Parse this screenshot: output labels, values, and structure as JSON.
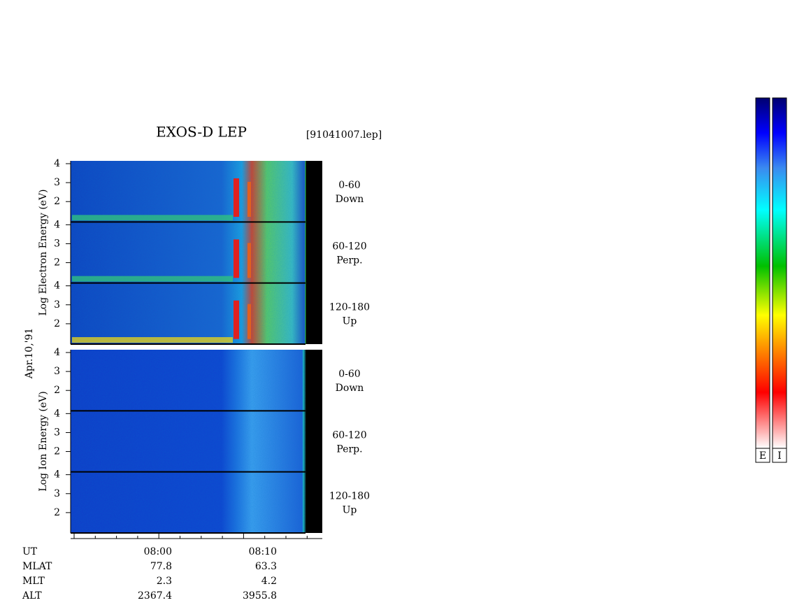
{
  "header": {
    "title": "EXOS-D LEP",
    "file": "[91041007.lep]"
  },
  "date": "Apr.10,'91",
  "electron": {
    "axis_label": "Log  Electron  Energy  (eV)",
    "panels": [
      {
        "angle": "0-60",
        "direction": "Down"
      },
      {
        "angle": "60-120",
        "direction": "Perp."
      },
      {
        "angle": "120-180",
        "direction": "Up"
      }
    ]
  },
  "ion": {
    "axis_label": "Log   Ion   Energy  (eV)",
    "panels": [
      {
        "angle": "0-60",
        "direction": "Down"
      },
      {
        "angle": "60-120",
        "direction": "Perp."
      },
      {
        "angle": "120-180",
        "direction": "Up"
      }
    ]
  },
  "y_ticks": [
    2,
    3,
    4
  ],
  "ephemeris": {
    "rows": [
      {
        "name": "UT",
        "values": [
          "08:00",
          "08:10"
        ]
      },
      {
        "name": "MLAT",
        "values": [
          "77.8",
          "63.3"
        ]
      },
      {
        "name": "MLT",
        "values": [
          "2.3",
          "4.2"
        ]
      },
      {
        "name": "ALT",
        "values": [
          "2367.4",
          "3955.8"
        ]
      }
    ]
  },
  "colorbars": [
    "E",
    "I"
  ]
}
